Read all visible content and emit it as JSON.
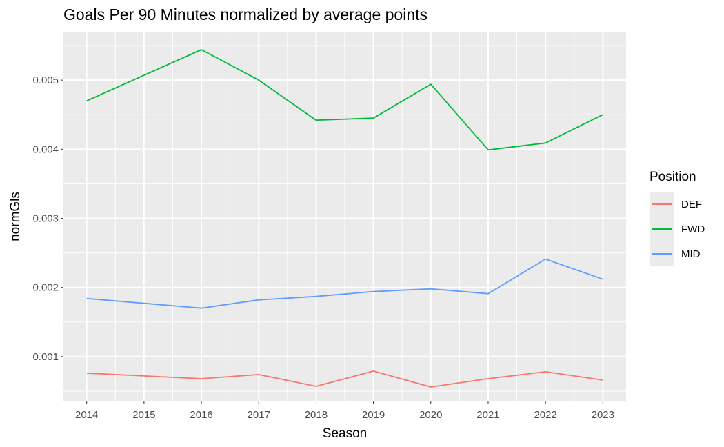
{
  "chart_data": {
    "type": "line",
    "title": "Goals Per 90 Minutes normalized by average points",
    "xlabel": "Season",
    "ylabel": "normGls",
    "x": [
      2014,
      2015,
      2016,
      2017,
      2018,
      2019,
      2020,
      2021,
      2022,
      2023
    ],
    "ylim": [
      0.00035,
      0.0057
    ],
    "y_ticks": [
      "0.001",
      "0.002",
      "0.003",
      "0.004",
      "0.005"
    ],
    "grid": true,
    "legend_title": "Position",
    "legend_position": "right",
    "series": [
      {
        "name": "DEF",
        "color": "#F8766D",
        "values": [
          0.00076,
          0.00072,
          0.00068,
          0.00074,
          0.00057,
          0.00079,
          0.00056,
          0.00068,
          0.00078,
          0.00066
        ]
      },
      {
        "name": "FWD",
        "color": "#00BA38",
        "values": [
          0.0047,
          0.00507,
          0.00544,
          0.005,
          0.00442,
          0.00445,
          0.00494,
          0.00399,
          0.00409,
          0.0045
        ]
      },
      {
        "name": "MID",
        "color": "#619CFF",
        "values": [
          0.00184,
          0.00177,
          0.0017,
          0.00182,
          0.00187,
          0.00194,
          0.00198,
          0.00191,
          0.00241,
          0.00212
        ]
      }
    ]
  }
}
